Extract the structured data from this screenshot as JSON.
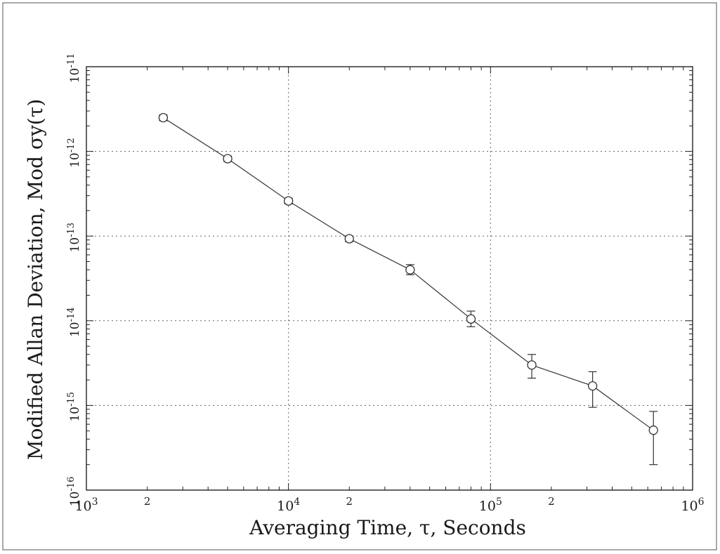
{
  "chart_data": {
    "type": "scatter",
    "xlabel": "Averaging Time, τ, Seconds",
    "ylabel": "Modified Allan Deviation, Mod σy(τ)",
    "x_scale": "log",
    "y_scale": "log",
    "xlim": [
      1000,
      1000000
    ],
    "ylim": [
      1e-16,
      1e-11
    ],
    "grid": true,
    "x_ticks": [
      {
        "value": 1000,
        "base": "10",
        "exp": "3"
      },
      {
        "value": 2000,
        "base": "2",
        "exp": ""
      },
      {
        "value": 10000,
        "base": "10",
        "exp": "4"
      },
      {
        "value": 20000,
        "base": "2",
        "exp": ""
      },
      {
        "value": 100000,
        "base": "10",
        "exp": "5"
      },
      {
        "value": 200000,
        "base": "2",
        "exp": ""
      },
      {
        "value": 1000000,
        "base": "10",
        "exp": "6"
      }
    ],
    "y_ticks": [
      {
        "value": 1e-11,
        "base": "10",
        "exp": "-11"
      },
      {
        "value": 1e-12,
        "base": "10",
        "exp": "-12"
      },
      {
        "value": 1e-13,
        "base": "10",
        "exp": "-13"
      },
      {
        "value": 1e-14,
        "base": "10",
        "exp": "-14"
      },
      {
        "value": 1e-15,
        "base": "10",
        "exp": "-15"
      },
      {
        "value": 1e-16,
        "base": "10",
        "exp": "-16"
      }
    ],
    "series": [
      {
        "marker": "open-circle",
        "line": true,
        "color": "#333333",
        "points": [
          {
            "x": 2400,
            "y": 2.5e-12,
            "err_low": 2.3e-12,
            "err_high": 2.7e-12
          },
          {
            "x": 5000,
            "y": 8.2e-13,
            "err_low": 7.6e-13,
            "err_high": 8.8e-13
          },
          {
            "x": 10000,
            "y": 2.6e-13,
            "err_low": 2.4e-13,
            "err_high": 2.8e-13
          },
          {
            "x": 20000,
            "y": 9.3e-14,
            "err_low": 8.6e-14,
            "err_high": 1e-13
          },
          {
            "x": 40000,
            "y": 4e-14,
            "err_low": 3.5e-14,
            "err_high": 4.6e-14
          },
          {
            "x": 80000,
            "y": 1.05e-14,
            "err_low": 8.5e-15,
            "err_high": 1.3e-14
          },
          {
            "x": 160000,
            "y": 3e-15,
            "err_low": 2.1e-15,
            "err_high": 4e-15
          },
          {
            "x": 320000,
            "y": 1.7e-15,
            "err_low": 9.5e-16,
            "err_high": 2.5e-15
          },
          {
            "x": 640000,
            "y": 5.1e-16,
            "err_low": 2e-16,
            "err_high": 8.5e-16
          }
        ]
      }
    ]
  }
}
